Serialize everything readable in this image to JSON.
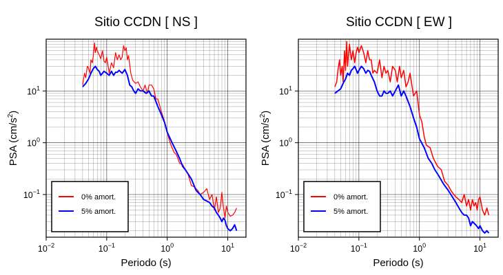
{
  "colors": {
    "series_0": "#ff0000",
    "series_5": "#0000ff",
    "grid": "#000000",
    "frame": "#000000"
  },
  "chart_data": [
    {
      "type": "line",
      "title": "Sitio CCDN [ NS ]",
      "xlabel": "Periodo (s)",
      "ylabel_main": "PSA (cm/s",
      "ylabel_sup": "2",
      "ylabel_end": ")",
      "xscale": "log",
      "yscale": "log",
      "xlim": [
        0.01,
        20
      ],
      "ylim": [
        0.015,
        100
      ],
      "xticks": [
        {
          "v": 0.01,
          "b": "10",
          "e": "−2"
        },
        {
          "v": 0.1,
          "b": "10",
          "e": "−1"
        },
        {
          "v": 1,
          "b": "10",
          "e": "0"
        },
        {
          "v": 10,
          "b": "10",
          "e": "1"
        }
      ],
      "yticks": [
        {
          "v": 0.1,
          "b": "10",
          "e": "−1"
        },
        {
          "v": 1,
          "b": "10",
          "e": "0"
        },
        {
          "v": 10,
          "b": "10",
          "e": "1"
        }
      ],
      "grid": true,
      "legend": {
        "position": "bottom-left",
        "entries": [
          "0% amort.",
          "5% amort."
        ]
      },
      "series": [
        {
          "name": "0% amort.",
          "color": "#ff0000",
          "width": 1.2,
          "x": [
            0.04,
            0.043,
            0.045,
            0.048,
            0.05,
            0.053,
            0.055,
            0.058,
            0.06,
            0.063,
            0.065,
            0.068,
            0.07,
            0.075,
            0.08,
            0.085,
            0.09,
            0.095,
            0.1,
            0.11,
            0.12,
            0.13,
            0.14,
            0.15,
            0.16,
            0.17,
            0.18,
            0.19,
            0.2,
            0.21,
            0.22,
            0.23,
            0.25,
            0.27,
            0.3,
            0.33,
            0.36,
            0.4,
            0.43,
            0.47,
            0.5,
            0.55,
            0.6,
            0.65,
            0.7,
            0.8,
            0.9,
            1,
            1.1,
            1.2,
            1.3,
            1.4,
            1.5,
            1.6,
            1.8,
            2,
            2.2,
            2.5,
            2.8,
            3.2,
            3.5,
            4,
            4.5,
            5,
            5.5,
            6,
            6.5,
            7,
            7.5,
            8,
            8.5,
            9,
            9.5,
            10,
            11,
            12,
            13,
            14
          ],
          "y": [
            13,
            22,
            18,
            30,
            28,
            22,
            40,
            35,
            48,
            85,
            55,
            70,
            60,
            50,
            42,
            60,
            38,
            35,
            45,
            22,
            35,
            28,
            55,
            40,
            50,
            40,
            45,
            75,
            60,
            68,
            40,
            48,
            22,
            16,
            14,
            15,
            12,
            10,
            13,
            9,
            13,
            13,
            11,
            7,
            7,
            4,
            2.6,
            1.6,
            1.05,
            0.8,
            0.65,
            0.6,
            0.5,
            0.4,
            0.38,
            0.3,
            0.25,
            0.15,
            0.14,
            0.12,
            0.1,
            0.11,
            0.13,
            0.08,
            0.1,
            0.05,
            0.09,
            0.045,
            0.055,
            0.11,
            0.055,
            0.035,
            0.06,
            0.045,
            0.038,
            0.04,
            0.045,
            0.055
          ]
        },
        {
          "name": "5% amort.",
          "color": "#0000ff",
          "width": 2,
          "x": [
            0.04,
            0.045,
            0.05,
            0.055,
            0.06,
            0.065,
            0.07,
            0.075,
            0.08,
            0.085,
            0.09,
            0.095,
            0.1,
            0.11,
            0.12,
            0.13,
            0.14,
            0.15,
            0.16,
            0.18,
            0.2,
            0.22,
            0.24,
            0.26,
            0.28,
            0.3,
            0.33,
            0.36,
            0.4,
            0.45,
            0.5,
            0.55,
            0.6,
            0.7,
            0.8,
            0.9,
            1,
            1.2,
            1.4,
            1.6,
            1.8,
            2,
            2.5,
            3,
            3.5,
            4,
            4.5,
            5,
            5.5,
            6,
            6.5,
            7,
            7.5,
            8,
            8.5,
            9,
            9.5,
            10,
            11,
            12,
            13,
            14
          ],
          "y": [
            12,
            14,
            17,
            22,
            27,
            30,
            26,
            24,
            20,
            22,
            24,
            23,
            22,
            20,
            24,
            20,
            23,
            23,
            25,
            22,
            26,
            20,
            13,
            12,
            10,
            9,
            11,
            10,
            10,
            9,
            10,
            8,
            8,
            5,
            3.5,
            2.5,
            1.6,
            1.0,
            0.7,
            0.5,
            0.35,
            0.3,
            0.2,
            0.12,
            0.1,
            0.08,
            0.075,
            0.07,
            0.06,
            0.055,
            0.045,
            0.04,
            0.035,
            0.03,
            0.035,
            0.032,
            0.025,
            0.022,
            0.02,
            0.022,
            0.026,
            0.02
          ]
        }
      ]
    },
    {
      "type": "line",
      "title": "Sitio CCDN [ EW ]",
      "xlabel": "Periodo (s)",
      "ylabel_main": "PSA (cm/s",
      "ylabel_sup": "2",
      "ylabel_end": ")",
      "xscale": "log",
      "yscale": "log",
      "xlim": [
        0.01,
        20
      ],
      "ylim": [
        0.015,
        100
      ],
      "xticks": [
        {
          "v": 0.01,
          "b": "10",
          "e": "−2"
        },
        {
          "v": 0.1,
          "b": "10",
          "e": "−1"
        },
        {
          "v": 1,
          "b": "10",
          "e": "0"
        },
        {
          "v": 10,
          "b": "10",
          "e": "1"
        }
      ],
      "yticks": [
        {
          "v": 0.1,
          "b": "10",
          "e": "−1"
        },
        {
          "v": 1,
          "b": "10",
          "e": "0"
        },
        {
          "v": 10,
          "b": "10",
          "e": "1"
        }
      ],
      "grid": true,
      "legend": {
        "position": "bottom-left",
        "entries": [
          "0% amort.",
          "5% amort."
        ]
      },
      "series": [
        {
          "name": "0% amort.",
          "color": "#ff0000",
          "width": 1.5,
          "x": [
            0.04,
            0.043,
            0.045,
            0.048,
            0.05,
            0.053,
            0.055,
            0.058,
            0.06,
            0.063,
            0.065,
            0.068,
            0.07,
            0.075,
            0.08,
            0.085,
            0.09,
            0.095,
            0.1,
            0.11,
            0.12,
            0.13,
            0.14,
            0.15,
            0.16,
            0.17,
            0.18,
            0.2,
            0.22,
            0.24,
            0.26,
            0.28,
            0.3,
            0.33,
            0.36,
            0.4,
            0.43,
            0.47,
            0.5,
            0.55,
            0.6,
            0.65,
            0.7,
            0.8,
            0.9,
            1,
            1.1,
            1.2,
            1.3,
            1.5,
            1.7,
            2,
            2.3,
            2.6,
            3,
            3.3,
            3.7,
            4,
            4.5,
            5,
            5.5,
            6,
            6.5,
            7,
            7.5,
            8,
            8.5,
            9,
            9.5,
            10,
            11,
            12,
            13,
            14
          ],
          "y": [
            12,
            15,
            25,
            40,
            20,
            30,
            15,
            60,
            25,
            90,
            30,
            55,
            80,
            40,
            60,
            35,
            55,
            70,
            55,
            75,
            55,
            35,
            60,
            40,
            40,
            22,
            25,
            22,
            40,
            18,
            30,
            22,
            25,
            15,
            30,
            25,
            15,
            30,
            18,
            25,
            12,
            15,
            22,
            8,
            10,
            3.5,
            2.5,
            1.3,
            0.9,
            0.8,
            0.5,
            0.35,
            0.3,
            0.18,
            0.15,
            0.12,
            0.1,
            0.09,
            0.08,
            0.07,
            0.1,
            0.06,
            0.08,
            0.05,
            0.08,
            0.06,
            0.07,
            0.05,
            0.08,
            0.09,
            0.05,
            0.04,
            0.055,
            0.04
          ]
        },
        {
          "name": "5% amort.",
          "color": "#0000ff",
          "width": 2,
          "x": [
            0.04,
            0.045,
            0.05,
            0.055,
            0.06,
            0.065,
            0.07,
            0.075,
            0.08,
            0.085,
            0.09,
            0.095,
            0.1,
            0.11,
            0.12,
            0.13,
            0.14,
            0.15,
            0.16,
            0.18,
            0.2,
            0.22,
            0.24,
            0.26,
            0.28,
            0.3,
            0.33,
            0.36,
            0.4,
            0.45,
            0.5,
            0.55,
            0.6,
            0.7,
            0.8,
            0.9,
            1,
            1.2,
            1.4,
            1.6,
            1.8,
            2,
            2.5,
            3,
            3.5,
            4,
            4.5,
            5,
            5.5,
            6,
            6.5,
            7,
            7.5,
            8,
            8.5,
            9,
            9.5,
            10,
            11,
            12,
            13,
            14
          ],
          "y": [
            9,
            10,
            11,
            14,
            17,
            22,
            20,
            25,
            27,
            30,
            26,
            22,
            25,
            30,
            27,
            22,
            25,
            24,
            20,
            15,
            10,
            8,
            8,
            10,
            9,
            9,
            10,
            8,
            10,
            13,
            8,
            10,
            8,
            5,
            3,
            2,
            1.2,
            0.8,
            0.5,
            0.4,
            0.3,
            0.25,
            0.16,
            0.12,
            0.09,
            0.07,
            0.055,
            0.045,
            0.04,
            0.04,
            0.035,
            0.025,
            0.03,
            0.028,
            0.026,
            0.024,
            0.022,
            0.025,
            0.02,
            0.018,
            0.02,
            0.018
          ]
        }
      ]
    }
  ]
}
